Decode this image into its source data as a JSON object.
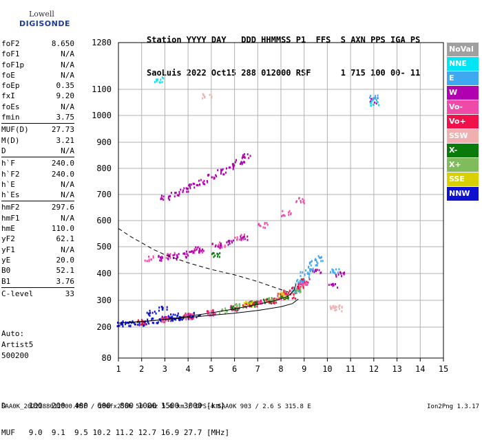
{
  "logo": {
    "line1": "Lowell",
    "line2": "DIGISONDE"
  },
  "header": {
    "labels": "Station YYYY DAY   DDD HHMMSS P1  FFS  S AXN PPS IGA PS",
    "values": "SaoLuis 2022 Oct15 288 012000 RSF      1 715 100 00- 11"
  },
  "params": [
    {
      "key": "foF2",
      "value": "8.650"
    },
    {
      "key": "foF1",
      "value": "N/A"
    },
    {
      "key": "foF1p",
      "value": "N/A"
    },
    {
      "key": "foE",
      "value": "N/A"
    },
    {
      "key": "foEp",
      "value": "0.35"
    },
    {
      "key": "fxI",
      "value": "9.20"
    },
    {
      "key": "foEs",
      "value": "N/A"
    },
    {
      "key": "fmin",
      "value": "3.75"
    },
    {
      "key": "MUF(D)",
      "value": "27.73"
    },
    {
      "key": "M(D)",
      "value": "3.21"
    },
    {
      "key": "D",
      "value": "N/A"
    },
    {
      "key": "h`F",
      "value": "240.0"
    },
    {
      "key": "h`F2",
      "value": "240.0"
    },
    {
      "key": "h`E",
      "value": "N/A"
    },
    {
      "key": "h`Es",
      "value": "N/A"
    },
    {
      "key": "hmF2",
      "value": "297.6"
    },
    {
      "key": "hmF1",
      "value": "N/A"
    },
    {
      "key": "hmE",
      "value": "110.0"
    },
    {
      "key": "yF2",
      "value": "62.1"
    },
    {
      "key": "yF1",
      "value": "N/A"
    },
    {
      "key": "yE",
      "value": "20.0"
    },
    {
      "key": "B0",
      "value": "52.1"
    },
    {
      "key": "B1",
      "value": "3.76"
    },
    {
      "key": "C-level",
      "value": "33"
    }
  ],
  "auto": [
    "Auto:",
    "Artist5",
    "500200"
  ],
  "dmuf": {
    "d_line": "D     100  200  400  600  800 1000 1500 3000 [km]",
    "muf_line": "MUF   9.0  9.1  9.5 10.2 11.2 12.7 16.9 27.7 [MHz]"
  },
  "footer": "SAA0K_2022288012000.RSF / 280fx256h 50 kHz 5.0 km / DPS-4 SAA0K 903 / 2.6 S 315.8 E",
  "version": "Ion2Png 1.3.17",
  "legend": [
    {
      "label": "NoVal",
      "color": "#a0a0a0"
    },
    {
      "label": "NNE",
      "color": "#00e5f5"
    },
    {
      "label": "E",
      "color": "#3ea8f0"
    },
    {
      "label": "W",
      "color": "#b000b0"
    },
    {
      "label": "Vo-",
      "color": "#f04aa8"
    },
    {
      "label": "Vo+",
      "color": "#f0104a"
    },
    {
      "label": "SSW",
      "color": "#f0b0b0"
    },
    {
      "label": "X-",
      "color": "#0a7a0a"
    },
    {
      "label": "X+",
      "color": "#80bc5c"
    },
    {
      "label": "SSE",
      "color": "#d8d000"
    },
    {
      "label": "NNW",
      "color": "#1010d0"
    }
  ],
  "chart_data": {
    "type": "scatter",
    "x_ticks": [
      "1",
      "2",
      "3",
      "4",
      "5",
      "6",
      "7",
      "8",
      "9",
      "10",
      "11",
      "12",
      "13",
      "14",
      "15"
    ],
    "y_ticks": [
      "80",
      "200",
      "300",
      "400",
      "500",
      "600",
      "700",
      "800",
      "900",
      "1000",
      "1100",
      "1280"
    ],
    "xlim": [
      1,
      15
    ],
    "ylim": [
      80,
      1280
    ],
    "grid": true,
    "series": [
      {
        "name": "NNW",
        "color": "#1010d0",
        "x": [
          1.1,
          1.3,
          1.6,
          1.9,
          2.2,
          2.6,
          3.0,
          3.3,
          3.6,
          4.0,
          2.4,
          2.9,
          3.4,
          4.3
        ],
        "y": [
          215,
          216,
          217,
          218,
          222,
          226,
          232,
          236,
          240,
          244,
          255,
          270,
          245,
          250
        ]
      },
      {
        "name": "Vo+",
        "color": "#f0104a",
        "x": [
          2.0,
          3.0,
          4.0,
          5.0,
          6.0,
          6.5,
          7.0,
          7.5,
          8.0,
          8.3,
          8.6,
          8.8,
          9.0,
          6.8,
          7.6,
          8.4
        ],
        "y": [
          222,
          232,
          244,
          258,
          275,
          285,
          294,
          305,
          318,
          330,
          345,
          360,
          375,
          290,
          300,
          320
        ]
      },
      {
        "name": "Vo-",
        "color": "#f04aa8",
        "x": [
          3.0,
          4.0,
          5.0,
          6.0,
          7.0,
          8.0,
          9.0,
          2.3,
          3.2,
          4.4,
          5.4,
          6.2,
          7.2,
          8.2,
          8.8
        ],
        "y": [
          230,
          242,
          256,
          272,
          292,
          316,
          362,
          460,
          470,
          490,
          510,
          540,
          585,
          630,
          680
        ]
      },
      {
        "name": "W",
        "color": "#b000b0",
        "x": [
          3.0,
          3.4,
          3.8,
          4.2,
          4.6,
          5.0,
          5.4,
          5.8,
          6.2,
          6.5,
          2.9,
          3.3,
          3.7,
          4.1,
          4.5,
          5.2,
          5.8,
          6.4,
          9.5,
          10.2,
          10.5,
          12.0
        ],
        "y": [
          690,
          705,
          720,
          735,
          750,
          770,
          790,
          810,
          830,
          850,
          460,
          465,
          470,
          480,
          492,
          505,
          520,
          540,
          410,
          360,
          400,
          1060
        ]
      },
      {
        "name": "E",
        "color": "#3ea8f0",
        "x": [
          8.6,
          8.8,
          9.0,
          9.2,
          9.4,
          9.6,
          10.3,
          12.0
        ],
        "y": [
          340,
          370,
          400,
          420,
          440,
          460,
          410,
          1070
        ]
      },
      {
        "name": "NNE",
        "color": "#00e5f5",
        "x": [
          2.7,
          12.0
        ],
        "y": [
          1140,
          1050
        ]
      },
      {
        "name": "X-",
        "color": "#0a7a0a",
        "x": [
          6.0,
          6.8,
          7.4,
          8.1,
          5.2
        ],
        "y": [
          278,
          290,
          302,
          318,
          470
        ]
      },
      {
        "name": "X+",
        "color": "#80bc5c",
        "x": [
          5.5,
          6.2,
          7.6,
          8.7
        ],
        "y": [
          265,
          280,
          308,
          340
        ]
      },
      {
        "name": "SSW",
        "color": "#f0b0b0",
        "x": [
          4.8,
          10.3,
          10.4
        ],
        "y": [
          1075,
          280,
          270
        ]
      },
      {
        "name": "SSE",
        "color": "#d8d000",
        "x": [
          6.6,
          8.0
        ],
        "y": [
          288,
          322
        ]
      }
    ],
    "profile_curve": {
      "x": [
        1.0,
        2.0,
        3.0,
        4.0,
        5.0,
        6.0,
        7.0,
        7.8,
        8.3,
        8.55,
        8.65
      ],
      "y": [
        215,
        220,
        229,
        240,
        253,
        268,
        285,
        300,
        315,
        335,
        360
      ]
    },
    "xtrace_curve": {
      "x": [
        1.0,
        2.0,
        3.0,
        4.0,
        5.0,
        6.0,
        7.0,
        8.0,
        8.5,
        8.75
      ],
      "y": [
        215,
        221,
        228,
        236,
        244,
        252,
        262,
        276,
        288,
        305
      ]
    },
    "dashed_curve": {
      "x": [
        1.0,
        1.5,
        2.0,
        2.5,
        3.0,
        4.0,
        5.0,
        6.0,
        7.0,
        7.5,
        8.0,
        8.5
      ],
      "y": [
        570,
        540,
        515,
        490,
        470,
        440,
        415,
        395,
        370,
        355,
        340,
        325
      ]
    }
  }
}
